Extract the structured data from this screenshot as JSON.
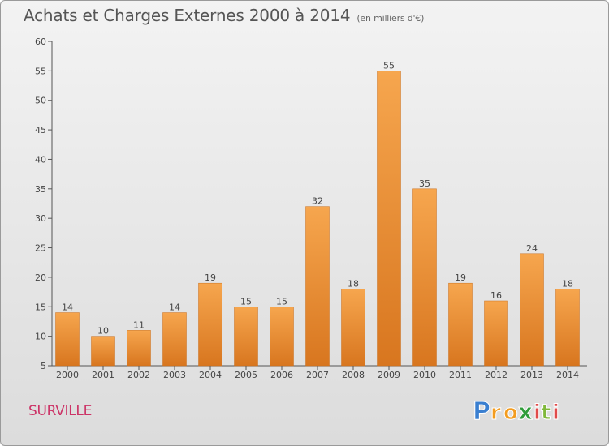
{
  "title": "Achats et Charges Externes 2000 à 2014",
  "unit_label": "(en milliers d'€)",
  "commune": "SURVILLE",
  "brand": "Proxiti",
  "colors": {
    "bar_top": "#f6a64e",
    "bar_bottom": "#d8761f",
    "bar_stroke": "#c96f1c",
    "title": "#555555",
    "commune": "#cc3366",
    "grid_axis": "#555555"
  },
  "chart_data": {
    "type": "bar",
    "title": "Achats et Charges Externes 2000 à 2014",
    "subtitle": "(en milliers d'€)",
    "categories": [
      "2000",
      "2001",
      "2002",
      "2003",
      "2004",
      "2005",
      "2006",
      "2007",
      "2008",
      "2009",
      "2010",
      "2011",
      "2012",
      "2013",
      "2014"
    ],
    "values": [
      14,
      10,
      11,
      14,
      19,
      15,
      15,
      32,
      18,
      55,
      35,
      19,
      16,
      24,
      18
    ],
    "ylim": [
      5,
      60
    ],
    "yticks": [
      5,
      10,
      15,
      20,
      25,
      30,
      35,
      40,
      45,
      50,
      55,
      60
    ],
    "xlabel": "",
    "ylabel": "",
    "data_labels": true,
    "grid": false
  }
}
